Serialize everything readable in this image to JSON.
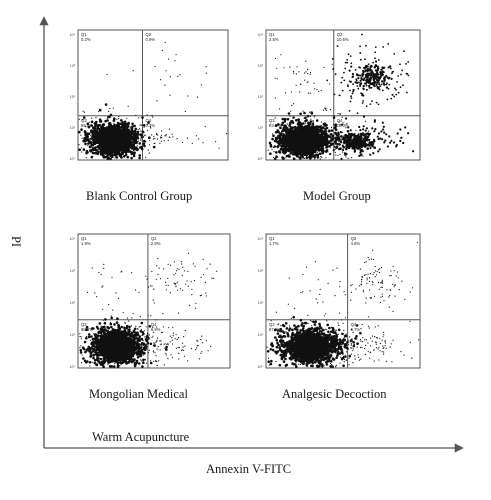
{
  "x_axis_label": "Annexin V-FITC",
  "y_axis_label": "PI",
  "panels": [
    {
      "name": "Blank Control Group",
      "caption_lines": [
        "Blank Control Group"
      ],
      "quadrants": [
        {
          "id": "Q1",
          "label": "Q1",
          "percent": "0.2%"
        },
        {
          "id": "Q2",
          "label": "Q2",
          "percent": "0.9%"
        },
        {
          "id": "Q3",
          "label": "Q3",
          "percent": "95.6%"
        },
        {
          "id": "Q4",
          "label": "Q4",
          "percent": "3.3%"
        }
      ],
      "population_density": {
        "Q1": 0.01,
        "Q2": 0.08,
        "Q3": 1.0,
        "Q4": 0.12
      }
    },
    {
      "name": "Model Group",
      "caption_lines": [
        "Model Group"
      ],
      "quadrants": [
        {
          "id": "Q1",
          "label": "Q1",
          "percent": "2.5%"
        },
        {
          "id": "Q2",
          "label": "Q2",
          "percent": "10.6%"
        },
        {
          "id": "Q3",
          "label": "Q3",
          "percent": "73.6%"
        },
        {
          "id": "Q4",
          "label": "Q4",
          "percent": "13.3%"
        }
      ],
      "population_density": {
        "Q1": 0.25,
        "Q2": 0.7,
        "Q3": 1.0,
        "Q4": 0.6
      }
    },
    {
      "name": "Mongolian Medical Warm Acupuncture",
      "caption_lines": [
        "Mongolian Medical",
        "Warm Acupuncture"
      ],
      "quadrants": [
        {
          "id": "Q1",
          "label": "Q1",
          "percent": "1.9%"
        },
        {
          "id": "Q2",
          "label": "Q2",
          "percent": "2.9%"
        },
        {
          "id": "Q3",
          "label": "Q3",
          "percent": "88.3%"
        },
        {
          "id": "Q4",
          "label": "Q4",
          "percent": "6.9%"
        }
      ],
      "population_density": {
        "Q1": 0.12,
        "Q2": 0.3,
        "Q3": 1.0,
        "Q4": 0.25
      }
    },
    {
      "name": "Analgesic Decoction",
      "caption_lines": [
        "Analgesic Decoction"
      ],
      "quadrants": [
        {
          "id": "Q1",
          "label": "Q1",
          "percent": "1.7%"
        },
        {
          "id": "Q2",
          "label": "Q2",
          "percent": "4.6%"
        },
        {
          "id": "Q3",
          "label": "Q3",
          "percent": "87.0%"
        },
        {
          "id": "Q4",
          "label": "Q4",
          "percent": "6.7%"
        }
      ],
      "population_density": {
        "Q1": 0.12,
        "Q2": 0.4,
        "Q3": 1.0,
        "Q4": 0.3
      }
    }
  ],
  "chart_data": {
    "type": "scatter",
    "title": "",
    "xlabel": "Annexin V-FITC",
    "ylabel": "PI",
    "xscale": "log",
    "yscale": "log",
    "xlim": [
      1,
      10000
    ],
    "ylim": [
      1,
      10000
    ],
    "tick_labels": [
      "10⁰",
      "10¹",
      "10²",
      "10³",
      "10⁴"
    ],
    "grid": false,
    "panels": [
      {
        "name": "Blank Control Group",
        "quadrant_percent": {
          "Q1": 0.2,
          "Q2": 0.9,
          "Q3": 95.6,
          "Q4": 3.3
        }
      },
      {
        "name": "Model Group",
        "quadrant_percent": {
          "Q1": 2.5,
          "Q2": 10.6,
          "Q3": 73.6,
          "Q4": 13.3
        }
      },
      {
        "name": "Mongolian Medical Warm Acupuncture",
        "quadrant_percent": {
          "Q1": 1.9,
          "Q2": 2.9,
          "Q3": 88.3,
          "Q4": 6.9
        }
      },
      {
        "name": "Analgesic Decoction",
        "quadrant_percent": {
          "Q1": 1.7,
          "Q2": 4.6,
          "Q3": 87.0,
          "Q4": 6.7
        }
      }
    ]
  },
  "colors": {
    "dots": "#111111",
    "frame": "#555555",
    "axis": "#555555"
  }
}
